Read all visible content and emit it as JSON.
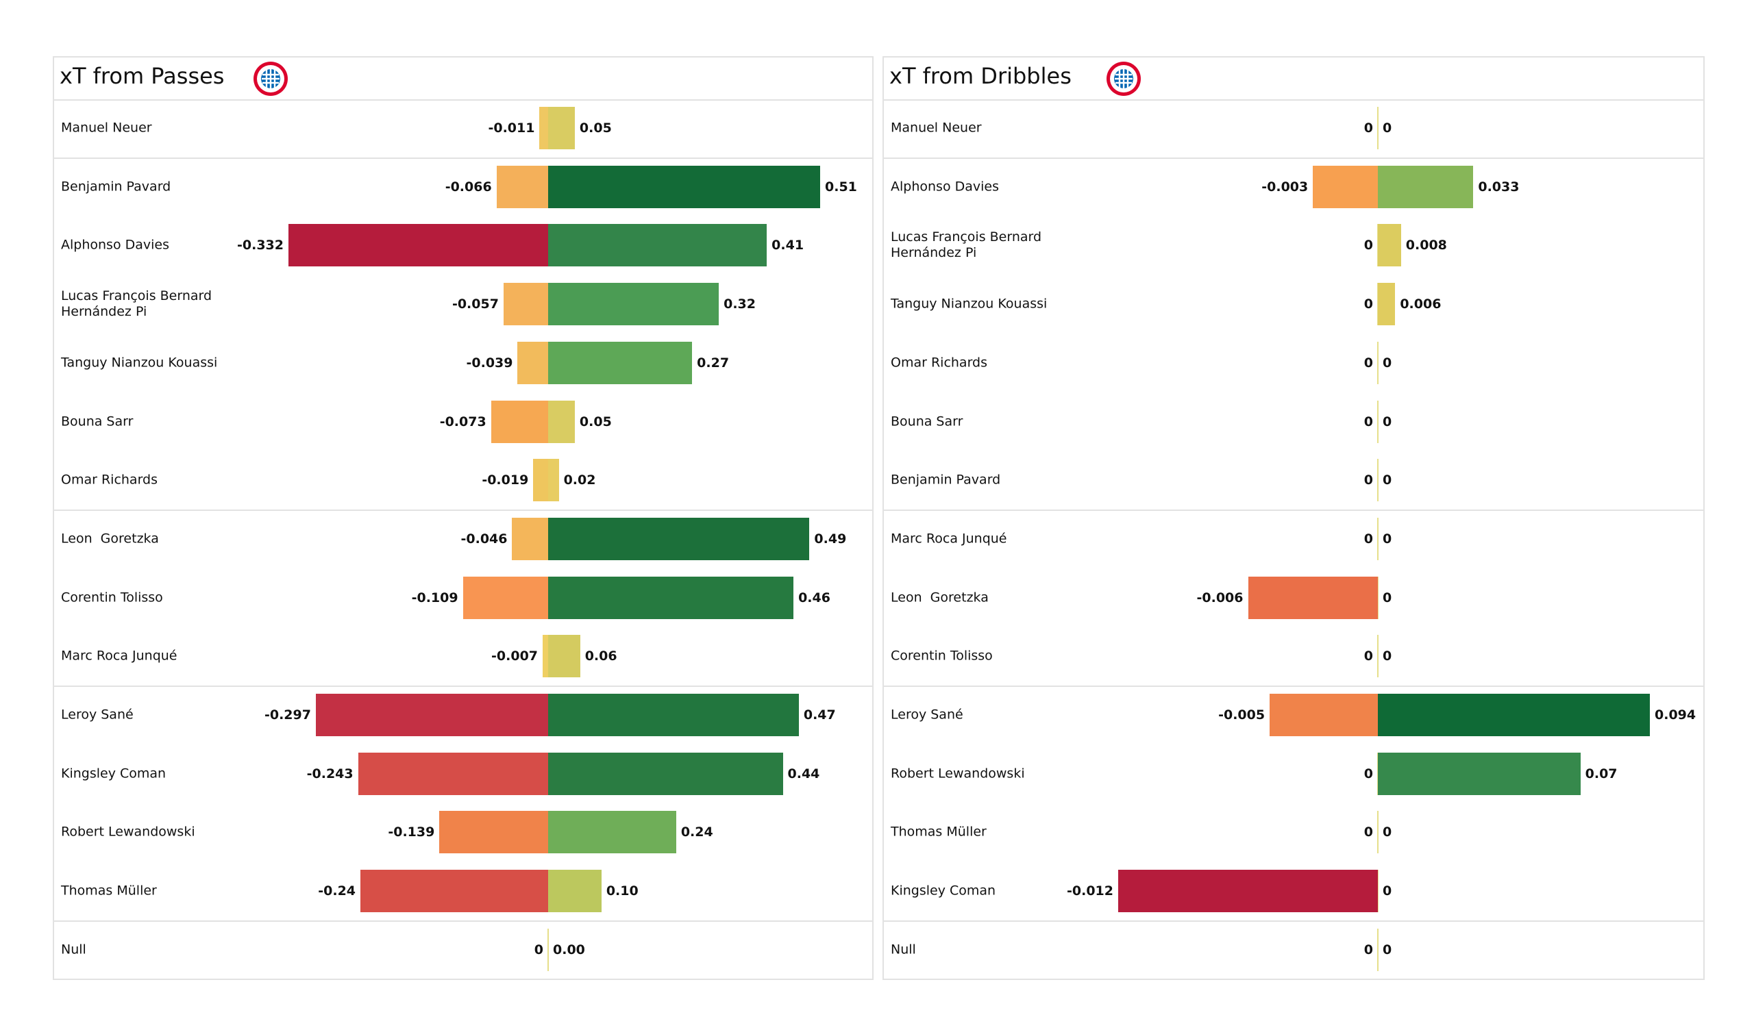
{
  "panels": [
    {
      "title": "xT from Passes",
      "logo": "fc-bayern-munchen-crest",
      "group_breaks_after": [
        0,
        6,
        9,
        13
      ],
      "rows": [
        {
          "name": "Manuel Neuer",
          "neg": -0.011,
          "pos": 0.05,
          "neg_label": "-0.011",
          "pos_label": "0.05",
          "neg_color": "#efc862",
          "pos_color": "#d9cc62"
        },
        {
          "name": "Benjamin Pavard",
          "neg": -0.066,
          "pos": 0.51,
          "neg_label": "-0.066",
          "pos_label": "0.51",
          "neg_color": "#f4b05a",
          "pos_color": "#136b37"
        },
        {
          "name": "Alphonso Davies",
          "neg": -0.332,
          "pos": 0.41,
          "neg_label": "-0.332",
          "pos_label": "0.41",
          "neg_color": "#b51c3c",
          "pos_color": "#33854a"
        },
        {
          "name": "Lucas François Bernard\nHernández Pi",
          "neg": -0.057,
          "pos": 0.32,
          "neg_label": "-0.057",
          "pos_label": "0.32",
          "neg_color": "#f4b25a",
          "pos_color": "#4b9c54"
        },
        {
          "name": "Tanguy Nianzou Kouassi",
          "neg": -0.039,
          "pos": 0.27,
          "neg_label": "-0.039",
          "pos_label": "0.27",
          "neg_color": "#f2bb5c",
          "pos_color": "#5ea857"
        },
        {
          "name": "Bouna Sarr",
          "neg": -0.073,
          "pos": 0.05,
          "neg_label": "-0.073",
          "pos_label": "0.05",
          "neg_color": "#f6a852",
          "pos_color": "#d9cc62"
        },
        {
          "name": "Omar Richards",
          "neg": -0.019,
          "pos": 0.02,
          "neg_label": "-0.019",
          "pos_label": "0.02",
          "neg_color": "#efc65e",
          "pos_color": "#e8cd62"
        },
        {
          "name": "Leon  Goretzka",
          "neg": -0.046,
          "pos": 0.49,
          "neg_label": "-0.046",
          "pos_label": "0.49",
          "neg_color": "#f4b65a",
          "pos_color": "#1c703a"
        },
        {
          "name": "Corentin Tolisso",
          "neg": -0.109,
          "pos": 0.46,
          "neg_label": "-0.109",
          "pos_label": "0.46",
          "neg_color": "#f89552",
          "pos_color": "#267a40"
        },
        {
          "name": "Marc Roca Junqué",
          "neg": -0.007,
          "pos": 0.06,
          "neg_label": "-0.007",
          "pos_label": "0.06",
          "neg_color": "#efcf62",
          "pos_color": "#d4cb60"
        },
        {
          "name": "Leroy Sané",
          "neg": -0.297,
          "pos": 0.47,
          "neg_label": "-0.297",
          "pos_label": "0.47",
          "neg_color": "#c33044",
          "pos_color": "#22763e"
        },
        {
          "name": "Kingsley Coman",
          "neg": -0.243,
          "pos": 0.44,
          "neg_label": "-0.243",
          "pos_label": "0.44",
          "neg_color": "#d64d48",
          "pos_color": "#2a7c42"
        },
        {
          "name": "Robert Lewandowski",
          "neg": -0.139,
          "pos": 0.24,
          "neg_label": "-0.139",
          "pos_label": "0.24",
          "neg_color": "#f0834a",
          "pos_color": "#6fae58"
        },
        {
          "name": "Thomas Müller",
          "neg": -0.24,
          "pos": 0.1,
          "neg_label": "-0.24",
          "pos_label": "0.10",
          "neg_color": "#d74f47",
          "pos_color": "#bcc85e"
        },
        {
          "name": "Null",
          "neg": 0,
          "pos": 0,
          "neg_label": "0",
          "pos_label": "0.00",
          "neg_color": "#e6df8a",
          "pos_color": "#e6df8a"
        }
      ]
    },
    {
      "title": "xT from Dribbles",
      "logo": "fc-bayern-munchen-crest",
      "group_breaks_after": [
        0,
        6,
        9,
        13
      ],
      "rows": [
        {
          "name": "Manuel Neuer",
          "neg": 0,
          "pos": 0,
          "neg_label": "0",
          "pos_label": "0",
          "neg_color": "#e6df8a",
          "pos_color": "#e6df8a"
        },
        {
          "name": "Alphonso Davies",
          "neg": -0.003,
          "pos": 0.033,
          "neg_label": "-0.003",
          "pos_label": "0.033",
          "neg_color": "#f7a050",
          "pos_color": "#87b658"
        },
        {
          "name": "Lucas François Bernard\nHernández Pi",
          "neg": 0,
          "pos": 0.008,
          "neg_label": "0",
          "pos_label": "0.008",
          "neg_color": "#e6df8a",
          "pos_color": "#dccc5f"
        },
        {
          "name": "Tanguy Nianzou Kouassi",
          "neg": 0,
          "pos": 0.006,
          "neg_label": "0",
          "pos_label": "0.006",
          "neg_color": "#e6df8a",
          "pos_color": "#e0cc5f"
        },
        {
          "name": "Omar Richards",
          "neg": 0,
          "pos": 0,
          "neg_label": "0",
          "pos_label": "0",
          "neg_color": "#e6df8a",
          "pos_color": "#e6df8a"
        },
        {
          "name": "Bouna Sarr",
          "neg": 0,
          "pos": 0,
          "neg_label": "0",
          "pos_label": "0",
          "neg_color": "#e6df8a",
          "pos_color": "#e6df8a"
        },
        {
          "name": "Benjamin Pavard",
          "neg": 0,
          "pos": 0,
          "neg_label": "0",
          "pos_label": "0",
          "neg_color": "#e6df8a",
          "pos_color": "#e6df8a"
        },
        {
          "name": "Marc Roca Junqué",
          "neg": 0,
          "pos": 0,
          "neg_label": "0",
          "pos_label": "0",
          "neg_color": "#e6df8a",
          "pos_color": "#e6df8a"
        },
        {
          "name": "Leon  Goretzka",
          "neg": -0.006,
          "pos": 0,
          "neg_label": "-0.006",
          "pos_label": "0",
          "neg_color": "#ea6f48",
          "pos_color": "#e6df8a"
        },
        {
          "name": "Corentin Tolisso",
          "neg": 0,
          "pos": 0,
          "neg_label": "0",
          "pos_label": "0",
          "neg_color": "#e6df8a",
          "pos_color": "#e6df8a"
        },
        {
          "name": "Leroy Sané",
          "neg": -0.005,
          "pos": 0.094,
          "neg_label": "-0.005",
          "pos_label": "0.094",
          "neg_color": "#f0834a",
          "pos_color": "#0f6a36"
        },
        {
          "name": "Robert Lewandowski",
          "neg": 0,
          "pos": 0.07,
          "neg_label": "0",
          "pos_label": "0.07",
          "neg_color": "#e6df8a",
          "pos_color": "#36894c"
        },
        {
          "name": "Thomas Müller",
          "neg": 0,
          "pos": 0,
          "neg_label": "0",
          "pos_label": "0",
          "neg_color": "#e6df8a",
          "pos_color": "#e6df8a"
        },
        {
          "name": "Kingsley Coman",
          "neg": -0.012,
          "pos": 0,
          "neg_label": "-0.012",
          "pos_label": "0",
          "neg_color": "#b51c3c",
          "pos_color": "#e6df8a"
        },
        {
          "name": "Null",
          "neg": 0,
          "pos": 0,
          "neg_label": "0",
          "pos_label": "0",
          "neg_color": "#e6df8a",
          "pos_color": "#e6df8a"
        }
      ]
    }
  ],
  "chart_data": [
    {
      "type": "bar",
      "title": "xT from Passes",
      "orientation": "horizontal-diverging",
      "categories": [
        "Manuel Neuer",
        "Benjamin Pavard",
        "Alphonso Davies",
        "Lucas François Bernard Hernández Pi",
        "Tanguy Nianzou Kouassi",
        "Bouna Sarr",
        "Omar Richards",
        "Leon  Goretzka",
        "Corentin Tolisso",
        "Marc Roca Junqué",
        "Leroy Sané",
        "Kingsley Coman",
        "Robert Lewandowski",
        "Thomas Müller",
        "Null"
      ],
      "series": [
        {
          "values": [
            -0.011,
            -0.066,
            -0.332,
            -0.057,
            -0.039,
            -0.073,
            -0.019,
            -0.046,
            -0.109,
            -0.007,
            -0.297,
            -0.243,
            -0.139,
            -0.24,
            0
          ]
        },
        {
          "values": [
            0.05,
            0.51,
            0.41,
            0.32,
            0.27,
            0.05,
            0.02,
            0.49,
            0.46,
            0.06,
            0.47,
            0.44,
            0.24,
            0.1,
            0.0
          ]
        }
      ],
      "grid": false
    },
    {
      "type": "bar",
      "title": "xT from Dribbles",
      "orientation": "horizontal-diverging",
      "categories": [
        "Manuel Neuer",
        "Alphonso Davies",
        "Lucas François Bernard Hernández Pi",
        "Tanguy Nianzou Kouassi",
        "Omar Richards",
        "Bouna Sarr",
        "Benjamin Pavard",
        "Marc Roca Junqué",
        "Leon  Goretzka",
        "Corentin Tolisso",
        "Leroy Sané",
        "Robert Lewandowski",
        "Thomas Müller",
        "Kingsley Coman",
        "Null"
      ],
      "series": [
        {
          "values": [
            0,
            -0.003,
            0,
            0,
            0,
            0,
            0,
            0,
            -0.006,
            0,
            -0.005,
            0,
            0,
            -0.012,
            0
          ]
        },
        {
          "values": [
            0,
            0.033,
            0.008,
            0.006,
            0,
            0,
            0,
            0,
            0,
            0,
            0.094,
            0.07,
            0,
            0,
            0
          ]
        }
      ],
      "grid": false
    }
  ]
}
